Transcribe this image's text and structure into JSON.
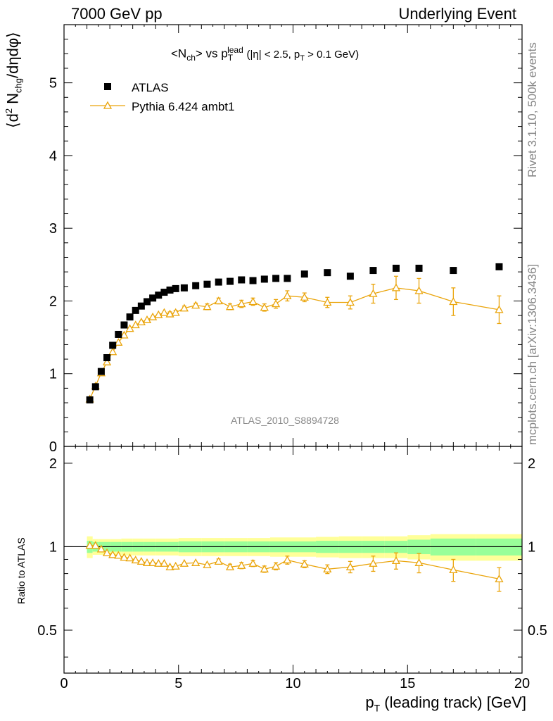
{
  "header": {
    "left": "7000 GeV pp",
    "right": "Underlying Event"
  },
  "side": {
    "rivet": "Rivet 3.1.10,  500k events",
    "mcplots": "mcplots.cern.ch [arXiv:1306.3436]"
  },
  "watermark": "ATLAS_2010_S8894728",
  "colors": {
    "atlas": "#000000",
    "pythia": "#eaa40a",
    "band_inner": "#99ff99",
    "band_outer": "#ffff99"
  },
  "chart_data": [
    {
      "type": "scatter",
      "title": "<N_ch> vs p_T^lead (|η| < 2.5, p_T > 0.1 GeV)",
      "xlabel": "",
      "ylabel": "⟨d² N_chg/dηdφ⟩",
      "xlim": [
        0,
        20
      ],
      "ylim": [
        0,
        5.8
      ],
      "yticks": [
        0,
        1,
        2,
        3,
        4,
        5
      ],
      "legend_position": "top-left",
      "series": [
        {
          "name": "ATLAS",
          "marker": "filled-square",
          "x": [
            1.125,
            1.375,
            1.625,
            1.875,
            2.125,
            2.375,
            2.625,
            2.875,
            3.125,
            3.375,
            3.625,
            3.875,
            4.125,
            4.375,
            4.625,
            4.875,
            5.25,
            5.75,
            6.25,
            6.75,
            7.25,
            7.75,
            8.25,
            8.75,
            9.25,
            9.75,
            10.5,
            11.5,
            12.5,
            13.5,
            14.5,
            15.5,
            17,
            19
          ],
          "y": [
            0.64,
            0.82,
            1.03,
            1.22,
            1.39,
            1.54,
            1.67,
            1.78,
            1.87,
            1.93,
            1.99,
            2.04,
            2.08,
            2.12,
            2.15,
            2.17,
            2.18,
            2.21,
            2.23,
            2.26,
            2.27,
            2.29,
            2.28,
            2.3,
            2.31,
            2.31,
            2.37,
            2.39,
            2.34,
            2.42,
            2.45,
            2.45,
            2.42,
            2.47
          ]
        },
        {
          "name": "Pythia 6.424 ambt1",
          "marker": "open-triangle",
          "x": [
            1.125,
            1.375,
            1.625,
            1.875,
            2.125,
            2.375,
            2.625,
            2.875,
            3.125,
            3.375,
            3.625,
            3.875,
            4.125,
            4.375,
            4.625,
            4.875,
            5.25,
            5.75,
            6.25,
            6.75,
            7.25,
            7.75,
            8.25,
            8.75,
            9.25,
            9.75,
            10.5,
            11.5,
            12.5,
            13.5,
            14.5,
            15.5,
            17,
            19
          ],
          "y": [
            0.65,
            0.83,
            1.01,
            1.16,
            1.3,
            1.43,
            1.53,
            1.62,
            1.67,
            1.71,
            1.74,
            1.78,
            1.81,
            1.84,
            1.82,
            1.84,
            1.9,
            1.94,
            1.92,
            2.0,
            1.92,
            1.96,
            1.99,
            1.91,
            1.96,
            2.07,
            2.05,
            1.98,
            1.98,
            2.1,
            2.18,
            2.14,
            1.99,
            1.88
          ],
          "yerr": [
            0.01,
            0.01,
            0.01,
            0.01,
            0.01,
            0.01,
            0.01,
            0.01,
            0.02,
            0.02,
            0.02,
            0.02,
            0.02,
            0.02,
            0.03,
            0.03,
            0.03,
            0.03,
            0.04,
            0.04,
            0.04,
            0.05,
            0.05,
            0.05,
            0.06,
            0.07,
            0.06,
            0.07,
            0.09,
            0.13,
            0.16,
            0.17,
            0.19,
            0.19
          ]
        }
      ]
    },
    {
      "type": "scatter",
      "title": "",
      "xlabel": "p_T (leading track) [GeV]",
      "ylabel": "Ratio to ATLAS",
      "xlim": [
        0,
        20
      ],
      "ylim": [
        0.35,
        2.3
      ],
      "xticks": [
        0,
        5,
        10,
        15,
        20
      ],
      "yticks": [
        0.5,
        1,
        2
      ],
      "reference_line": 1,
      "band_edges": [
        1.0,
        1.25,
        1.5,
        2.0,
        2.5,
        3.0,
        3.5,
        4.0,
        4.5,
        5.0,
        6.0,
        7.0,
        8.0,
        9.0,
        10.0,
        11.0,
        12.0,
        13.0,
        14.0,
        15.0,
        16.0,
        18.0,
        20.0
      ],
      "band_inner_halfwidth": [
        0.05,
        0.04,
        0.04,
        0.04,
        0.04,
        0.04,
        0.04,
        0.04,
        0.04,
        0.045,
        0.045,
        0.045,
        0.045,
        0.045,
        0.045,
        0.05,
        0.05,
        0.05,
        0.05,
        0.06,
        0.07,
        0.07
      ],
      "band_outer_halfwidth": [
        0.09,
        0.065,
        0.065,
        0.065,
        0.07,
        0.07,
        0.07,
        0.07,
        0.07,
        0.075,
        0.075,
        0.075,
        0.075,
        0.08,
        0.08,
        0.085,
        0.09,
        0.09,
        0.09,
        0.1,
        0.11,
        0.11
      ],
      "series": [
        {
          "name": "Pythia 6.424 ambt1",
          "x": [
            1.125,
            1.375,
            1.625,
            1.875,
            2.125,
            2.375,
            2.625,
            2.875,
            3.125,
            3.375,
            3.625,
            3.875,
            4.125,
            4.375,
            4.625,
            4.875,
            5.25,
            5.75,
            6.25,
            6.75,
            7.25,
            7.75,
            8.25,
            8.75,
            9.25,
            9.75,
            10.5,
            11.5,
            12.5,
            13.5,
            14.5,
            15.5,
            17,
            19
          ],
          "y": [
            1.01,
            1.01,
            0.98,
            0.95,
            0.935,
            0.93,
            0.915,
            0.91,
            0.895,
            0.885,
            0.875,
            0.875,
            0.87,
            0.87,
            0.845,
            0.85,
            0.87,
            0.875,
            0.86,
            0.885,
            0.845,
            0.855,
            0.87,
            0.83,
            0.85,
            0.895,
            0.865,
            0.83,
            0.845,
            0.87,
            0.89,
            0.875,
            0.825,
            0.765
          ],
          "yerr": [
            0.01,
            0.01,
            0.01,
            0.01,
            0.01,
            0.01,
            0.01,
            0.01,
            0.01,
            0.01,
            0.01,
            0.01,
            0.01,
            0.01,
            0.012,
            0.012,
            0.013,
            0.013,
            0.015,
            0.018,
            0.02,
            0.022,
            0.022,
            0.022,
            0.025,
            0.03,
            0.025,
            0.03,
            0.04,
            0.055,
            0.06,
            0.07,
            0.075,
            0.075
          ]
        }
      ]
    }
  ]
}
